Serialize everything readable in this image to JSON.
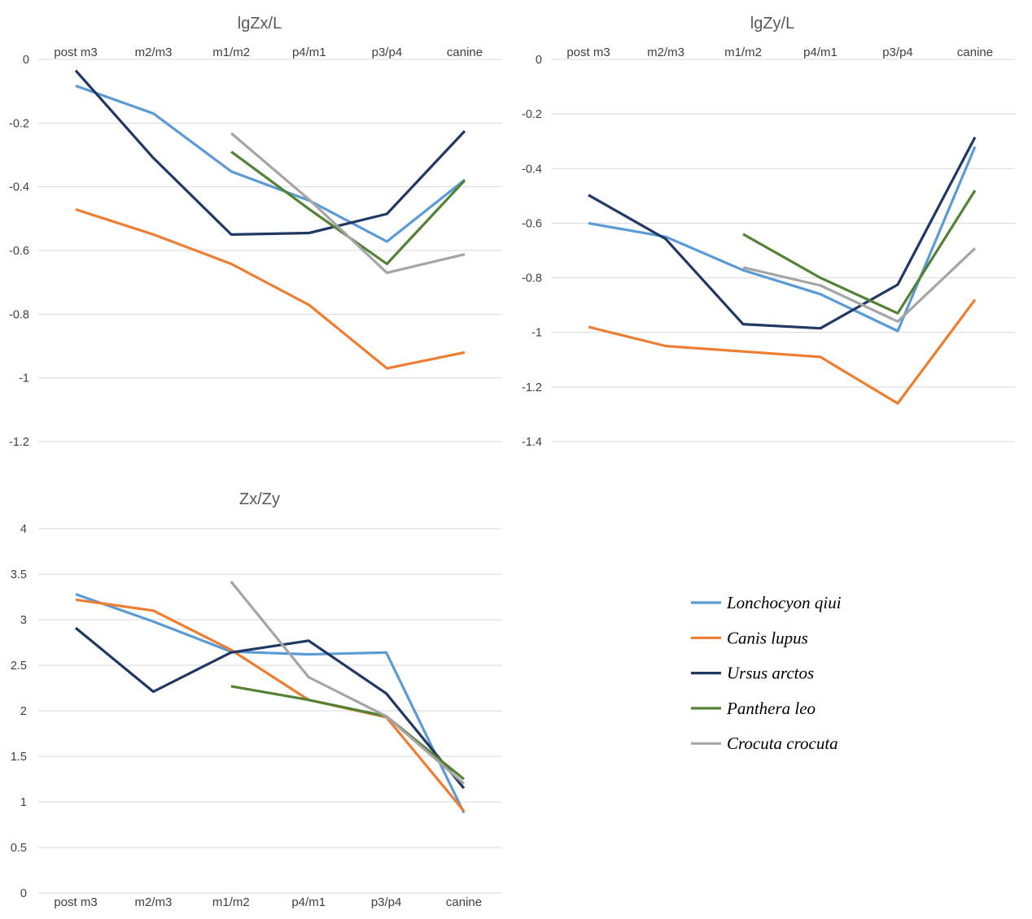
{
  "chart_data": [
    {
      "type": "line",
      "title": "lgZx/L",
      "categories": [
        "post m3",
        "m2/m3",
        "m1/m2",
        "p4/m1",
        "p3/p4",
        "canine"
      ],
      "ylim": [
        -1.2,
        0
      ],
      "yticks": [
        "0",
        "-0.2",
        "-0.4",
        "-0.6",
        "-0.8",
        "-1",
        "-1.2"
      ],
      "category_axis_position": "top",
      "grid": true,
      "series": [
        {
          "name": "Lonchocyon qiui",
          "values": [
            -0.083,
            -0.17,
            -0.352,
            -0.443,
            -0.572,
            -0.378
          ]
        },
        {
          "name": "Canis lupus",
          "values": [
            -0.471,
            -0.55,
            -0.642,
            -0.771,
            -0.97,
            -0.92
          ]
        },
        {
          "name": "Ursus arctos",
          "values": [
            -0.035,
            -0.31,
            -0.55,
            -0.545,
            -0.485,
            -0.225
          ]
        },
        {
          "name": "Panthera leo",
          "values": [
            null,
            null,
            -0.29,
            -0.47,
            -0.642,
            -0.38
          ]
        },
        {
          "name": "Crocuta crocuta",
          "values": [
            null,
            null,
            -0.232,
            -0.44,
            -0.67,
            -0.612
          ]
        }
      ]
    },
    {
      "type": "line",
      "title": "lgZy/L",
      "categories": [
        "post m3",
        "m2/m3",
        "m1/m2",
        "p4/m1",
        "p3/p4",
        "canine"
      ],
      "ylim": [
        -1.4,
        0
      ],
      "yticks": [
        "0",
        "-0.2",
        "-0.4",
        "-0.6",
        "-0.8",
        "-1",
        "-1.2",
        "-1.4"
      ],
      "category_axis_position": "top",
      "grid": true,
      "series": [
        {
          "name": "Lonchocyon qiui",
          "values": [
            -0.6,
            -0.65,
            -0.772,
            -0.86,
            -0.995,
            -0.32
          ]
        },
        {
          "name": "Canis lupus",
          "values": [
            -0.98,
            -1.05,
            -1.07,
            -1.09,
            -1.26,
            -0.88
          ]
        },
        {
          "name": "Ursus arctos",
          "values": [
            -0.497,
            -0.658,
            -0.97,
            -0.985,
            -0.825,
            -0.285
          ]
        },
        {
          "name": "Panthera leo",
          "values": [
            null,
            null,
            -0.64,
            -0.8,
            -0.93,
            -0.48
          ]
        },
        {
          "name": "Crocuta crocuta",
          "values": [
            null,
            null,
            -0.762,
            -0.828,
            -0.96,
            -0.692
          ]
        }
      ]
    },
    {
      "type": "line",
      "title": "Zx/Zy",
      "categories": [
        "post m3",
        "m2/m3",
        "m1/m2",
        "p4/m1",
        "p3/p4",
        "canine"
      ],
      "ylim": [
        0,
        4
      ],
      "yticks": [
        "0",
        "0.5",
        "1",
        "1.5",
        "2",
        "2.5",
        "3",
        "3.5",
        "4"
      ],
      "category_axis_position": "bottom",
      "grid": true,
      "series": [
        {
          "name": "Lonchocyon qiui",
          "values": [
            3.28,
            2.98,
            2.65,
            2.62,
            2.64,
            0.88
          ]
        },
        {
          "name": "Canis lupus",
          "values": [
            3.22,
            3.1,
            2.67,
            2.12,
            1.93,
            0.9
          ]
        },
        {
          "name": "Ursus arctos",
          "values": [
            2.91,
            2.21,
            2.64,
            2.77,
            2.19,
            1.15
          ]
        },
        {
          "name": "Panthera leo",
          "values": [
            null,
            null,
            2.27,
            2.12,
            1.94,
            1.25
          ]
        },
        {
          "name": "Crocuta crocuta",
          "values": [
            null,
            null,
            3.42,
            2.37,
            1.94,
            1.2
          ]
        }
      ]
    }
  ],
  "legend": {
    "placement": "lower-right",
    "items": [
      {
        "label": "Lonchocyon qiui",
        "color": "#5b9bd5"
      },
      {
        "label": "Canis lupus",
        "color": "#ed7d31"
      },
      {
        "label": "Ursus arctos",
        "color": "#203864"
      },
      {
        "label": "Panthera leo",
        "color": "#548235"
      },
      {
        "label": "Crocuta crocuta",
        "color": "#a5a5a5"
      }
    ]
  },
  "colors": {
    "Lonchocyon qiui": "#5b9bd5",
    "Canis lupus": "#ed7d31",
    "Ursus arctos": "#203864",
    "Panthera leo": "#548235",
    "Crocuta crocuta": "#a5a5a5",
    "grid": "#d9d9d9",
    "text": "#404040"
  }
}
